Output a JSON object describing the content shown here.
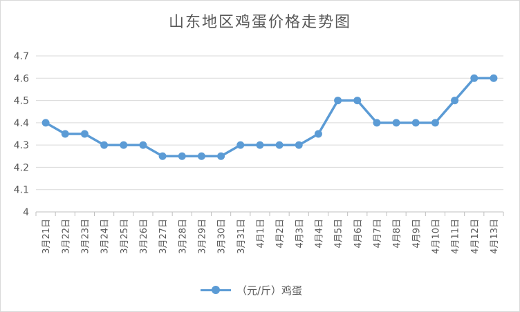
{
  "chart_data": {
    "type": "line",
    "title": "山东地区鸡蛋价格走势图",
    "xlabel": "",
    "ylabel": "",
    "ylim": [
      4,
      4.7
    ],
    "yticks": [
      "4",
      "4.1",
      "4.2",
      "4.3",
      "4.4",
      "4.5",
      "4.6",
      "4.7"
    ],
    "grid": true,
    "legend_position": "bottom",
    "categories": [
      "3月21日",
      "3月22日",
      "3月23日",
      "3月24日",
      "3月25日",
      "3月26日",
      "3月27日",
      "3月28日",
      "3月29日",
      "3月30日",
      "3月31日",
      "4月1日",
      "4月2日",
      "4月3日",
      "4月4日",
      "4月5日",
      "4月6日",
      "4月7日",
      "4月8日",
      "4月9日",
      "4月10日",
      "4月11日",
      "4月12日",
      "4月13日"
    ],
    "series": [
      {
        "name": "（元/斤）鸡蛋",
        "color": "#5b9bd5",
        "values": [
          4.4,
          4.35,
          4.35,
          4.3,
          4.3,
          4.3,
          4.25,
          4.25,
          4.25,
          4.25,
          4.3,
          4.3,
          4.3,
          4.3,
          4.35,
          4.5,
          4.5,
          4.4,
          4.4,
          4.4,
          4.4,
          4.5,
          4.6,
          4.6
        ]
      }
    ]
  }
}
